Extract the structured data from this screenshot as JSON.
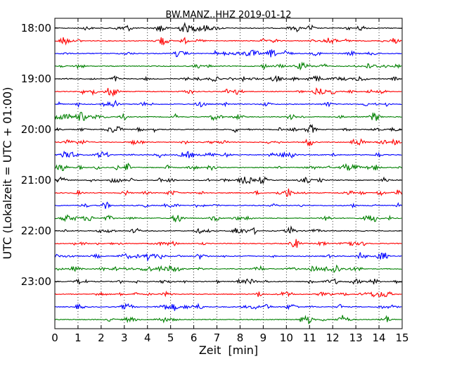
{
  "chart_data": {
    "type": "line",
    "title": "BW.MANZ..HHZ 2019-01-12",
    "xlabel": "Zeit  [min]",
    "ylabel": "UTC (Lokalzeit = UTC + 01:00)",
    "xlim": [
      0,
      15
    ],
    "x_ticks": [
      "0",
      "1",
      "2",
      "3",
      "4",
      "5",
      "6",
      "7",
      "8",
      "9",
      "10",
      "11",
      "12",
      "13",
      "14",
      "15"
    ],
    "y_ticks": [
      "18:00",
      "19:00",
      "20:00",
      "21:00",
      "22:00",
      "23:00"
    ],
    "grid": "vertical dotted",
    "trace_interval_min": 15,
    "traces_count": 24,
    "series_colors": [
      "#000000",
      "#ff0000",
      "#0000ff",
      "#008000"
    ]
  }
}
